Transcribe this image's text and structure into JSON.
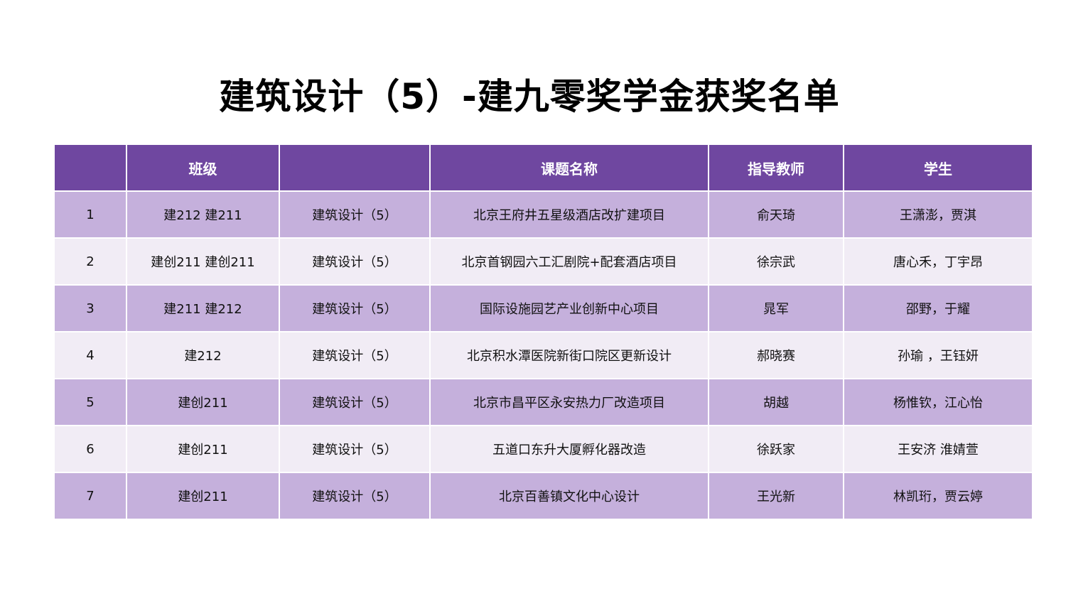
{
  "title": "建筑设计（5）-建九零奖学金获奖名单",
  "colors": {
    "header": "#6f47a0",
    "row_dark": "#c5b0dc",
    "row_light": "#f1ecf5"
  },
  "table": {
    "headers": [
      "",
      "班级",
      "",
      "课题名称",
      "指导教师",
      "学生"
    ],
    "rows": [
      [
        "1",
        "建212 建211",
        "建筑设计（5）",
        "北京王府井五星级酒店改扩建项目",
        "俞天琦",
        "王潇澎，贾淇"
      ],
      [
        "2",
        "建创211 建创211",
        "建筑设计（5）",
        "北京首钢园六工汇剧院+配套酒店项目",
        "徐宗武",
        "唐心禾，丁宇昂"
      ],
      [
        "3",
        "建211 建212",
        "建筑设计（5）",
        "国际设施园艺产业创新中心项目",
        "晁军",
        "邵野，于耀"
      ],
      [
        "4",
        "建212",
        "建筑设计（5）",
        "北京积水潭医院新街口院区更新设计",
        "郝晓赛",
        "孙瑜 ，王钰妍"
      ],
      [
        "5",
        "建创211",
        "建筑设计（5）",
        "北京市昌平区永安热力厂改造项目",
        "胡越",
        "杨惟钦，江心怡"
      ],
      [
        "6",
        "建创211",
        "建筑设计（5）",
        "五道口东升大厦孵化器改造",
        "徐跃家",
        "王安济 淮婧萱"
      ],
      [
        "7",
        "建创211",
        "建筑设计（5）",
        "北京百善镇文化中心设计",
        "王光新",
        "林凯珩，贾云婷"
      ]
    ]
  }
}
